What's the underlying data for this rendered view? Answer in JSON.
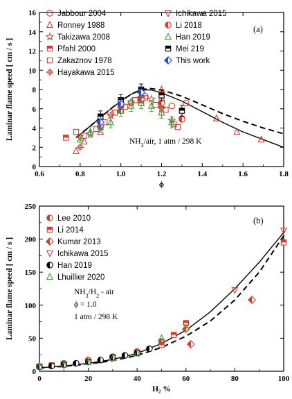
{
  "chart_data": [
    {
      "type": "scatter",
      "panel_label": "(a)",
      "xlabel": "ϕ",
      "ylabel": "Laminar flame speed [ cm / s ]",
      "xlim": [
        0.6,
        1.8
      ],
      "ylim": [
        0,
        16
      ],
      "xticks": [
        "0.6",
        "0.8",
        "1.0",
        "1.2",
        "1.4",
        "1.6",
        "1.8"
      ],
      "yticks": [
        "0",
        "2",
        "4",
        "6",
        "8",
        "10",
        "12",
        "14",
        "16"
      ],
      "annotation": "NH3/air, 1 atm / 298 K",
      "legend_placement": "top",
      "series": [
        {
          "name": "Jabbour 2004",
          "marker": "circle-open",
          "color": "#d93a2b",
          "points": [
            [
              0.95,
              5.6
            ],
            [
              1.05,
              6.6
            ],
            [
              1.12,
              7.3
            ],
            [
              1.2,
              6.8
            ],
            [
              1.25,
              6.3
            ],
            [
              1.3,
              5.0
            ],
            [
              1.32,
              6.6
            ]
          ]
        },
        {
          "name": "Ronney 1988",
          "marker": "triangle-up-open",
          "color": "#d93a2b",
          "points": [
            [
              0.78,
              1.6
            ],
            [
              0.82,
              2.6
            ],
            [
              0.9,
              3.6
            ],
            [
              1.2,
              8.0
            ],
            [
              1.47,
              5.0
            ],
            [
              1.57,
              3.6
            ],
            [
              1.69,
              2.8
            ]
          ]
        },
        {
          "name": "Takizawa 2008",
          "marker": "star-open",
          "color": "#d93a2b",
          "points": [
            [
              0.85,
              3.4
            ],
            [
              0.95,
              5.3
            ],
            [
              1.0,
              6.4
            ],
            [
              1.05,
              6.7
            ],
            [
              1.1,
              7.1
            ],
            [
              1.15,
              7.0
            ],
            [
              1.2,
              6.0
            ],
            [
              1.25,
              4.8
            ]
          ]
        },
        {
          "name": "Pfahl 2000",
          "marker": "square-half",
          "color": "#d93a2b",
          "points": [
            [
              0.73,
              3.0
            ],
            [
              1.0,
              6.4
            ],
            [
              1.1,
              6.6
            ]
          ]
        },
        {
          "name": "Zakaznov 1978",
          "marker": "square-open",
          "color": "#d93a2b",
          "points": [
            [
              0.78,
              3.6
            ],
            [
              0.82,
              3.2
            ],
            [
              0.88,
              3.9
            ],
            [
              0.92,
              4.6
            ],
            [
              0.97,
              5.6
            ],
            [
              1.02,
              6.2
            ],
            [
              1.07,
              6.9
            ],
            [
              1.12,
              7.1
            ],
            [
              1.17,
              6.4
            ],
            [
              1.22,
              5.9
            ],
            [
              1.26,
              4.4
            ],
            [
              1.28,
              4.1
            ]
          ]
        },
        {
          "name": "Hayakawa 2015",
          "marker": "cross-circle",
          "color": "#d93a2b",
          "points": [
            [
              0.8,
              2.0
            ],
            [
              0.9,
              4.1
            ],
            [
              1.0,
              6.2
            ],
            [
              1.1,
              7.3
            ],
            [
              1.2,
              6.2
            ]
          ]
        },
        {
          "name": "Ichikawa 2015",
          "marker": "triangle-down-open",
          "color": "#d93a2b",
          "points": [
            [
              0.8,
              3.0
            ],
            [
              0.9,
              4.4
            ],
            [
              1.0,
              6.1
            ],
            [
              1.1,
              7.0
            ],
            [
              1.2,
              6.4
            ]
          ]
        },
        {
          "name": "Li 2018",
          "marker": "circle-half",
          "color": "#d93a2b",
          "points": [
            [
              0.9,
              4.2
            ],
            [
              1.0,
              5.8
            ],
            [
              1.1,
              7.0
            ],
            [
              1.2,
              6.6
            ],
            [
              1.3,
              4.9
            ]
          ]
        },
        {
          "name": "Han 2019",
          "marker": "triangle-up-open",
          "color": "#3a9b3a",
          "points": [
            [
              0.8,
              2.8
            ],
            [
              0.85,
              3.6
            ],
            [
              0.9,
              4.1
            ],
            [
              0.95,
              4.6
            ],
            [
              1.0,
              5.8
            ],
            [
              1.05,
              6.3
            ],
            [
              1.1,
              6.6
            ],
            [
              1.15,
              6.3
            ],
            [
              1.2,
              5.6
            ],
            [
              1.25,
              4.6
            ]
          ]
        },
        {
          "name": "Mei 219",
          "marker": "square-half-black",
          "color": "#000000",
          "points": [
            [
              0.9,
              5.2
            ],
            [
              1.0,
              6.9
            ],
            [
              1.1,
              8.0
            ],
            [
              1.2,
              7.4
            ],
            [
              1.3,
              5.8
            ]
          ]
        },
        {
          "name": "This work",
          "marker": "diamond-half",
          "color": "#1f4fd6",
          "points": [
            [
              0.9,
              4.6
            ],
            [
              1.0,
              6.5
            ],
            [
              1.1,
              7.7
            ]
          ]
        }
      ],
      "lines": [
        {
          "style": "solid",
          "points": [
            [
              0.78,
              3.0
            ],
            [
              0.85,
              4.2
            ],
            [
              0.9,
              5.1
            ],
            [
              0.95,
              6.0
            ],
            [
              1.0,
              6.8
            ],
            [
              1.05,
              7.5
            ],
            [
              1.1,
              7.95
            ],
            [
              1.15,
              7.95
            ],
            [
              1.2,
              7.65
            ],
            [
              1.3,
              6.8
            ],
            [
              1.4,
              5.7
            ],
            [
              1.5,
              4.6
            ],
            [
              1.6,
              3.6
            ],
            [
              1.7,
              2.8
            ],
            [
              1.8,
              2.0
            ]
          ]
        },
        {
          "style": "dashed",
          "points": [
            [
              0.78,
              3.0
            ],
            [
              0.85,
              4.2
            ],
            [
              0.9,
              5.1
            ],
            [
              0.95,
              6.0
            ],
            [
              1.0,
              6.8
            ],
            [
              1.05,
              7.5
            ],
            [
              1.1,
              8.0
            ],
            [
              1.15,
              8.1
            ],
            [
              1.2,
              7.95
            ],
            [
              1.3,
              7.3
            ],
            [
              1.4,
              6.4
            ],
            [
              1.5,
              5.5
            ],
            [
              1.6,
              4.7
            ],
            [
              1.7,
              4.0
            ],
            [
              1.8,
              3.4
            ]
          ]
        }
      ]
    },
    {
      "type": "scatter",
      "panel_label": "(b)",
      "xlabel": "H₂ %",
      "ylabel": "Laminar flame speed [ cm / s ]",
      "xlim": [
        0,
        100
      ],
      "ylim": [
        0,
        250
      ],
      "xticks": [
        "0",
        "20",
        "40",
        "60",
        "80",
        "100"
      ],
      "yticks": [
        "0",
        "50",
        "100",
        "150",
        "200",
        "250"
      ],
      "annotation": [
        "NH3/H2 - air",
        "ϕ = 1.0",
        "1 atm / 298 K"
      ],
      "legend_placement": "top-left",
      "series": [
        {
          "name": "Lee 2010",
          "marker": "circle-half",
          "color": "#d93a2b",
          "points": [
            [
              0,
              7
            ],
            [
              10,
              12
            ],
            [
              20,
              17
            ],
            [
              30,
              22
            ],
            [
              40,
              30
            ],
            [
              50,
              45
            ]
          ]
        },
        {
          "name": "Li 2014",
          "marker": "square-half",
          "color": "#d93a2b",
          "points": [
            [
              5,
              9
            ],
            [
              10,
              11
            ],
            [
              20,
              14
            ],
            [
              30,
              20
            ],
            [
              40,
              27
            ],
            [
              50,
              40
            ],
            [
              55,
              55
            ],
            [
              60,
              73
            ],
            [
              100,
              195
            ]
          ]
        },
        {
          "name": "Kumar 2013",
          "marker": "diamond-half",
          "color": "#d93a2b",
          "points": [
            [
              60,
              64
            ],
            [
              62,
              41
            ],
            [
              87,
              108
            ]
          ]
        },
        {
          "name": "Ichikawa 2015",
          "marker": "triangle-down-open",
          "color": "#d93a2b",
          "points": [
            [
              0,
              7
            ],
            [
              10,
              10
            ],
            [
              20,
              15
            ],
            [
              30,
              21
            ],
            [
              40,
              28
            ],
            [
              50,
              44
            ],
            [
              60,
              70
            ],
            [
              80,
              123
            ],
            [
              100,
              213
            ]
          ]
        },
        {
          "name": "Han 2019",
          "marker": "circle-half-black",
          "color": "#000000",
          "points": [
            [
              0,
              7
            ],
            [
              5,
              8
            ],
            [
              10,
              10
            ],
            [
              15,
              12
            ],
            [
              20,
              14
            ],
            [
              25,
              17
            ],
            [
              30,
              21
            ],
            [
              35,
              24
            ],
            [
              40,
              28
            ],
            [
              45,
              34
            ]
          ]
        },
        {
          "name": "Lhuillier 2020",
          "marker": "triangle-up-open",
          "color": "#3a9b3a",
          "points": [
            [
              0,
              7
            ],
            [
              10,
              10
            ],
            [
              20,
              14
            ],
            [
              30,
              20
            ],
            [
              40,
              27
            ],
            [
              50,
              50
            ],
            [
              60,
              66
            ]
          ]
        }
      ],
      "lines": [
        {
          "style": "solid",
          "points": [
            [
              0,
              5
            ],
            [
              10,
              8
            ],
            [
              20,
              12
            ],
            [
              30,
              18
            ],
            [
              40,
              27
            ],
            [
              50,
              42
            ],
            [
              60,
              62
            ],
            [
              70,
              90
            ],
            [
              80,
              125
            ],
            [
              90,
              165
            ],
            [
              100,
              210
            ]
          ]
        },
        {
          "style": "dashed",
          "points": [
            [
              0,
              5
            ],
            [
              10,
              7.5
            ],
            [
              20,
              11
            ],
            [
              30,
              16
            ],
            [
              40,
              24
            ],
            [
              50,
              36
            ],
            [
              60,
              53
            ],
            [
              70,
              76
            ],
            [
              80,
              108
            ],
            [
              90,
              150
            ],
            [
              100,
              205
            ]
          ]
        }
      ]
    }
  ]
}
